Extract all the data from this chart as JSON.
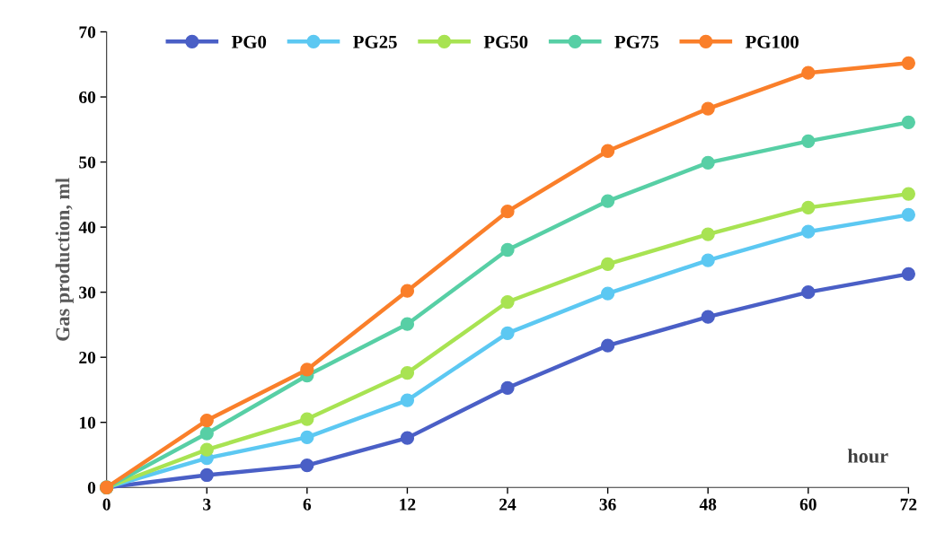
{
  "chart_data": {
    "type": "line",
    "xlabel": "hour",
    "ylabel": "Gas production, ml",
    "categories": [
      "0",
      "3",
      "6",
      "12",
      "24",
      "36",
      "48",
      "60",
      "72"
    ],
    "series": [
      {
        "name": "PG0",
        "color": "#4a5fc6",
        "values": [
          0,
          1.9,
          3.4,
          7.6,
          15.3,
          21.8,
          26.2,
          30.0,
          32.8
        ]
      },
      {
        "name": "PG25",
        "color": "#5cc8f2",
        "values": [
          0,
          4.5,
          7.7,
          13.4,
          23.7,
          29.8,
          34.9,
          39.3,
          41.9
        ]
      },
      {
        "name": "PG50",
        "color": "#a8e352",
        "values": [
          0,
          5.8,
          10.5,
          17.6,
          28.5,
          34.3,
          38.9,
          43.0,
          45.1
        ]
      },
      {
        "name": "PG75",
        "color": "#57cfa5",
        "values": [
          0,
          8.3,
          17.2,
          25.1,
          36.5,
          44.0,
          49.9,
          53.2,
          56.1
        ]
      },
      {
        "name": "PG100",
        "color": "#fa7f2a",
        "values": [
          0,
          10.3,
          18.1,
          30.2,
          42.4,
          51.7,
          58.2,
          63.7,
          65.2
        ]
      }
    ],
    "ylim": [
      0,
      70
    ],
    "yticks": [
      0,
      10,
      20,
      30,
      40,
      50,
      60,
      70
    ],
    "grid": false,
    "legend": "top",
    "marker": "circle",
    "line_style": "solid"
  }
}
